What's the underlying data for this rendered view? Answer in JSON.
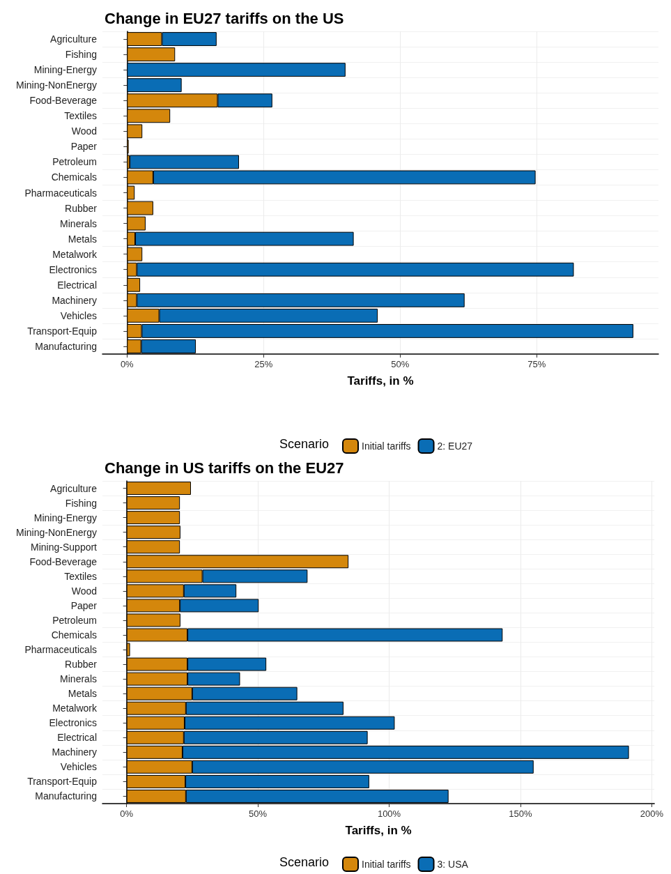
{
  "chart_data": [
    {
      "type": "bar",
      "orientation": "horizontal",
      "stacked": true,
      "title": "Change in EU27 tariffs on the US",
      "xlabel": "Tariffs, in %",
      "legend_title": "Scenario",
      "legend": "bottom",
      "grid": true,
      "categories": [
        "Agriculture",
        "Fishing",
        "Mining-Energy",
        "Mining-NonEnergy",
        "Food-Beverage",
        "Textiles",
        "Wood",
        "Paper",
        "Petroleum",
        "Chemicals",
        "Pharmaceuticals",
        "Rubber",
        "Minerals",
        "Metals",
        "Metalwork",
        "Electronics",
        "Electrical",
        "Machinery",
        "Vehicles",
        "Transport-Equip",
        "Manufacturing"
      ],
      "xlim": [
        -4.5,
        97.3
      ],
      "xticks": [
        {
          "value": 0,
          "label": "0%"
        },
        {
          "value": 25,
          "label": "25%"
        },
        {
          "value": 50,
          "label": "50%"
        },
        {
          "value": 75,
          "label": "75%"
        }
      ],
      "series": [
        {
          "name": "Initial tariffs",
          "color": "#d4870c",
          "values": [
            6.4,
            8.8,
            null,
            null,
            16.6,
            7.9,
            2.8,
            0.3,
            0.5,
            4.8,
            1.4,
            4.8,
            3.4,
            1.5,
            2.8,
            1.8,
            2.4,
            1.8,
            5.9,
            2.7,
            2.6
          ]
        },
        {
          "name": "2: EU27",
          "color": "#0a6db5",
          "values": [
            10,
            null,
            40,
            10,
            10,
            null,
            null,
            null,
            20,
            70,
            null,
            null,
            null,
            40,
            null,
            80,
            null,
            60,
            40,
            90,
            10
          ]
        }
      ]
    },
    {
      "type": "bar",
      "orientation": "horizontal",
      "stacked": true,
      "title": "Change in US tariffs on the EU27",
      "xlabel": "Tariffs, in %",
      "legend_title": "Scenario",
      "legend": "bottom",
      "grid": true,
      "categories": [
        "Agriculture",
        "Fishing",
        "Mining-Energy",
        "Mining-NonEnergy",
        "Mining-Support",
        "Food-Beverage",
        "Textiles",
        "Wood",
        "Paper",
        "Petroleum",
        "Chemicals",
        "Pharmaceuticals",
        "Rubber",
        "Minerals",
        "Metals",
        "Metalwork",
        "Electronics",
        "Electrical",
        "Machinery",
        "Vehicles",
        "Transport-Equip",
        "Manufacturing"
      ],
      "xlim": [
        -9.2,
        201
      ],
      "xticks": [
        {
          "value": 0,
          "label": "0%"
        },
        {
          "value": 50,
          "label": "50%"
        },
        {
          "value": 100,
          "label": "100%"
        },
        {
          "value": 150,
          "label": "150%"
        },
        {
          "value": 200,
          "label": "200%"
        }
      ],
      "series": [
        {
          "name": "Initial tariffs",
          "color": "#d4870c",
          "values": [
            24.5,
            20.3,
            20.3,
            20.5,
            20.3,
            84.5,
            28.9,
            21.8,
            20.3,
            20.5,
            23.2,
            1.3,
            23.2,
            23.2,
            25,
            22.6,
            22.1,
            21.8,
            21.3,
            25,
            22.4,
            22.6
          ]
        },
        {
          "name": "3: USA",
          "color": "#0a6db5",
          "values": [
            null,
            null,
            null,
            null,
            null,
            null,
            40,
            20,
            30,
            null,
            120,
            null,
            30,
            20,
            40,
            60,
            80,
            70,
            170,
            130,
            70,
            100
          ]
        }
      ]
    }
  ]
}
